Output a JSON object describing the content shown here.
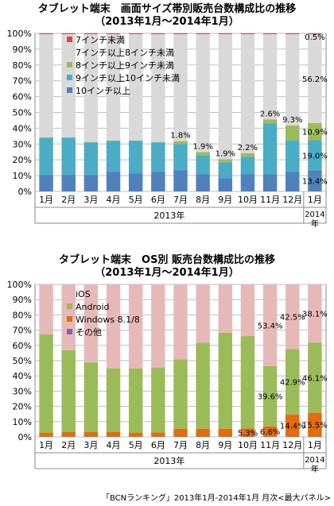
{
  "chart_data": [
    {
      "type": "bar",
      "stacked": true,
      "title_line1": "タブレット端末　画面サイズ帯別販売台数構成比の推移",
      "title_line2": "（2013年1月～2014年1月）",
      "categories": [
        "1月",
        "2月",
        "3月",
        "4月",
        "5月",
        "6月",
        "7月",
        "8月",
        "9月",
        "10月",
        "11月",
        "12月",
        "1月"
      ],
      "year_labels": [
        "2013年",
        "2014年"
      ],
      "ylim": [
        0,
        100
      ],
      "yticks": [
        "0%",
        "10%",
        "20%",
        "30%",
        "40%",
        "50%",
        "60%",
        "70%",
        "80%",
        "90%",
        "100%"
      ],
      "grid": true,
      "legend_position": "top-left",
      "series": [
        {
          "name": "10インチ以上",
          "color": "#4f81bd",
          "values": [
            10.5,
            10.3,
            10.5,
            12.5,
            11.5,
            12.3,
            13.5,
            11.0,
            8.5,
            11.0,
            11.0,
            12.5,
            13.4
          ]
        },
        {
          "name": "9インチ以上10インチ未満",
          "color": "#4bacc6",
          "values": [
            23.5,
            23.7,
            20.5,
            19.5,
            20.5,
            18.7,
            16.5,
            12.0,
            10.0,
            11.0,
            32.0,
            20.0,
            19.0
          ]
        },
        {
          "name": "8インチ以上9インチ未満",
          "color": "#9bbb59",
          "values": [
            0.3,
            0.3,
            0.3,
            0.3,
            0.3,
            0.3,
            1.8,
            1.9,
            1.9,
            2.2,
            2.6,
            9.3,
            10.9
          ]
        },
        {
          "name": "7インチ以上8インチ未満",
          "color": "#d9d9d9",
          "values": [
            65.2,
            65.2,
            68.2,
            67.2,
            67.2,
            68.2,
            67.7,
            74.6,
            79.1,
            75.3,
            53.9,
            57.7,
            56.2
          ]
        },
        {
          "name": "7インチ未満",
          "color": "#c0504d",
          "values": [
            0.5,
            0.5,
            0.5,
            0.5,
            0.5,
            0.5,
            0.5,
            0.5,
            0.5,
            0.5,
            0.5,
            0.5,
            0.5
          ]
        }
      ],
      "data_labels": [
        {
          "text": "1.8%",
          "index": 6,
          "series": 2
        },
        {
          "text": "1.9%",
          "index": 7,
          "series": 2
        },
        {
          "text": "1.9%",
          "index": 8,
          "series": 2
        },
        {
          "text": "2.2%",
          "index": 9,
          "series": 2
        },
        {
          "text": "2.6%",
          "index": 10,
          "series": 2
        },
        {
          "text": "9.3%",
          "index": 11,
          "series": 2
        },
        {
          "text": "0.5%",
          "index": 12,
          "series": 4
        },
        {
          "text": "56.2%",
          "index": 12,
          "series": 3
        },
        {
          "text": "10.9%",
          "index": 12,
          "series": 2
        },
        {
          "text": "19.0%",
          "index": 12,
          "series": 1
        },
        {
          "text": "13.4%",
          "index": 12,
          "series": 0
        }
      ]
    },
    {
      "type": "bar",
      "stacked": true,
      "title_line1": "タブレット端末　OS別 販売台数構成比の推移",
      "title_line2": "（2013年1月～2014年1月）",
      "categories": [
        "1月",
        "2月",
        "3月",
        "4月",
        "5月",
        "6月",
        "7月",
        "8月",
        "9月",
        "10月",
        "11月",
        "12月",
        "1月"
      ],
      "year_labels": [
        "2013年",
        "2014年"
      ],
      "ylim": [
        0,
        100
      ],
      "yticks": [
        "0%",
        "10%",
        "20%",
        "30%",
        "40%",
        "50%",
        "60%",
        "70%",
        "80%",
        "90%",
        "100%"
      ],
      "grid": true,
      "legend_position": "top-left",
      "series": [
        {
          "name": "その他",
          "color": "#8064a2",
          "values": [
            0.3,
            0.3,
            0.3,
            0.3,
            0.3,
            0.3,
            0.3,
            0.3,
            0.3,
            0.3,
            0.3,
            0.3,
            0.3
          ]
        },
        {
          "name": "Windows 8.1/8",
          "color": "#e46c0a",
          "values": [
            2.5,
            3.0,
            3.0,
            3.0,
            2.5,
            2.7,
            5.0,
            5.0,
            5.0,
            5.3,
            6.6,
            14.4,
            15.5
          ]
        },
        {
          "name": "Android",
          "color": "#9bbb59",
          "values": [
            64.5,
            53.5,
            45.5,
            41.5,
            42.0,
            42.5,
            45.5,
            56.5,
            63.0,
            60.5,
            39.6,
            42.9,
            46.1
          ]
        },
        {
          "name": "iOS",
          "color": "#e6b9b8",
          "values": [
            32.7,
            43.2,
            51.2,
            55.2,
            55.2,
            54.5,
            49.2,
            38.2,
            31.7,
            33.9,
            53.4,
            42.5,
            38.1
          ]
        }
      ],
      "data_labels": [
        {
          "text": "53.4%",
          "index": 10,
          "series": 3
        },
        {
          "text": "39.6%",
          "index": 10,
          "series": 2
        },
        {
          "text": "6.6%",
          "index": 10,
          "series": 1
        },
        {
          "text": "5.3%",
          "index": 9,
          "series": 1
        },
        {
          "text": "42.5%",
          "index": 11,
          "series": 3
        },
        {
          "text": "42.9%",
          "index": 11,
          "series": 2
        },
        {
          "text": "14.4%",
          "index": 11,
          "series": 1
        },
        {
          "text": "38.1%",
          "index": 12,
          "series": 3
        },
        {
          "text": "46.1%",
          "index": 12,
          "series": 2
        },
        {
          "text": "15.5%",
          "index": 12,
          "series": 1
        }
      ]
    }
  ],
  "source": "「BCNランキング」2013年1月-2014年1月 月次<最大パネル>"
}
